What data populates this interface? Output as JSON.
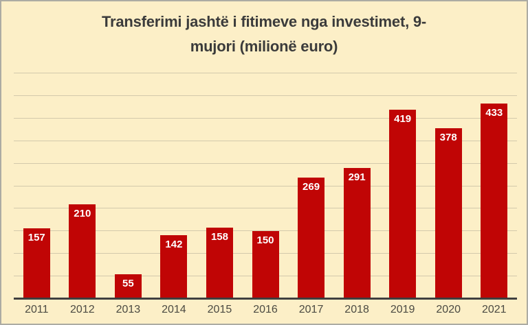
{
  "frame": {
    "background": "#FCEFC7",
    "border_color": "#ACABA3"
  },
  "chart_data": {
    "type": "bar",
    "title": "Transferimi jashtë i fitimeve nga investimet, 9-mujori (milionë euro)",
    "title_lines": [
      "Transferimi jashtë i fitimeve nga investimet, 9-",
      "mujori (milionë euro)"
    ],
    "categories": [
      "2011",
      "2012",
      "2013",
      "2014",
      "2015",
      "2016",
      "2017",
      "2018",
      "2019",
      "2020",
      "2021"
    ],
    "values": [
      157,
      210,
      55,
      142,
      158,
      150,
      269,
      291,
      419,
      378,
      433
    ],
    "xlabel": "",
    "ylabel": "",
    "ylim": [
      0,
      500
    ],
    "gridline_step": 50,
    "grid": true,
    "legend": "none",
    "y_tick_labels_visible": false,
    "data_labels_position": "inside-end",
    "colors": {
      "bar": "#C00505",
      "background": "#FCEFC7",
      "gridline": "#D3C9AB",
      "axis_line": "#3F3F3F",
      "title_text": "#3B3B3B",
      "axis_label_text": "#4B4A42",
      "value_label_text": "#FFFFFF"
    }
  }
}
